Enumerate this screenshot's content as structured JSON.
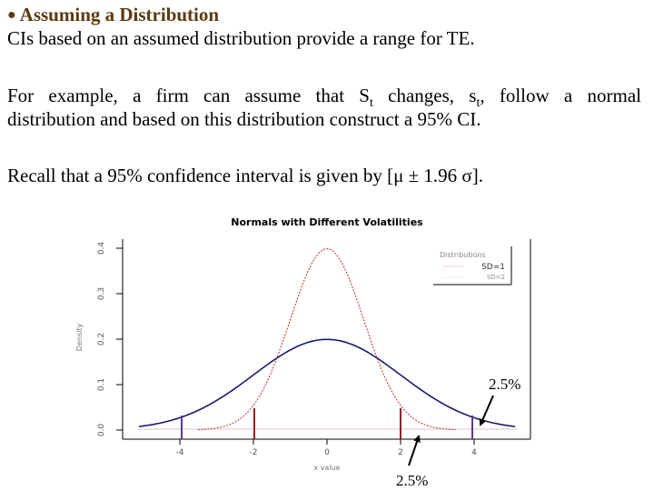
{
  "slide": {
    "heading_bullet": "●",
    "heading": "Assuming a Distribution",
    "line1": "CIs based on an assumed distribution provide a range for TE.",
    "para2_line1_a": "For example, a firm can assume that S",
    "para2_line1_sub1": "t",
    "para2_line1_b": " changes, s",
    "para2_line1_sub2": "t",
    "para2_line1_c": ", follow a normal",
    "para2_line2": "distribution and based on this distribution construct a 95% CI.",
    "para3": "Recall that a 95% confidence interval is given by [μ ± 1.96 σ]."
  },
  "annotations": {
    "upper_pct": "2.5%",
    "lower_pct": "2.5%"
  },
  "colors": {
    "heading": "#5a3a10",
    "sd1_curve": "#b03030",
    "sd2_curve": "#1a1a6e",
    "sd1_bounds": "#a01818",
    "sd2_bounds": "#5a3a8a"
  },
  "chart_data": {
    "type": "line",
    "title": "Normals with Different Volatilities",
    "xlabel": "x value",
    "ylabel": "Density",
    "xlim": [
      -4.9,
      5.4
    ],
    "ylim": [
      0,
      0.42
    ],
    "xticks": [
      -4,
      -2,
      0,
      2,
      4
    ],
    "xtick_labels": [
      "-4",
      "-2",
      "0",
      "2",
      "4"
    ],
    "yticks": [
      0.0,
      0.1,
      0.2,
      0.3,
      0.4
    ],
    "ytick_labels": [
      "0.0",
      "0.1",
      "0.2",
      "0.3",
      "0.4"
    ],
    "legend": {
      "title": "Distributions",
      "entries": [
        "SD=1",
        "SD=2"
      ],
      "position": "top-right"
    },
    "series": [
      {
        "name": "SD=1",
        "mean": 0,
        "sd": 1,
        "style": "dashed-thin",
        "peak": 0.399,
        "ci_bounds": [
          -1.96,
          1.96
        ]
      },
      {
        "name": "SD=2",
        "mean": 0,
        "sd": 2,
        "style": "solid",
        "peak": 0.199,
        "ci_bounds": [
          -3.92,
          3.92
        ]
      }
    ],
    "annotations": [
      {
        "text": "2.5%",
        "points_to_x": 4.2,
        "position": "upper-right"
      },
      {
        "text": "2.5%",
        "points_to_x": 2.5,
        "position": "below-axis"
      }
    ]
  }
}
